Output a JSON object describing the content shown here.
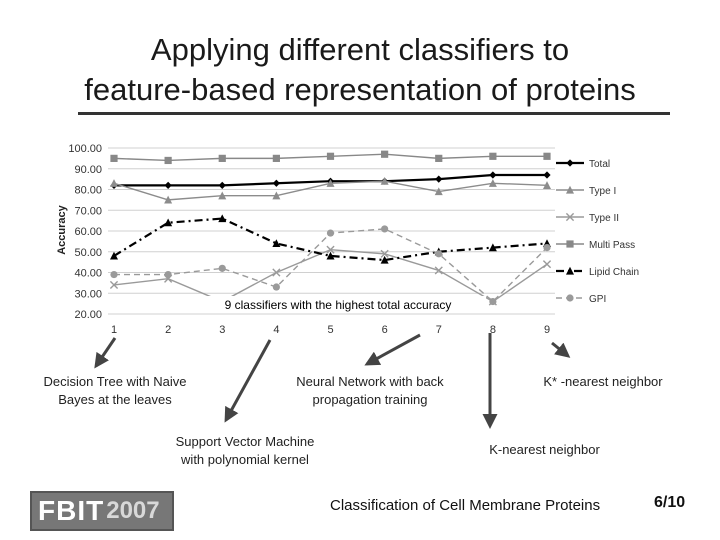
{
  "slide": {
    "title_line1": "Applying different classifiers to",
    "title_line2": "feature-based representation of proteins",
    "footer": "Classification of Cell Membrane Proteins",
    "page": "6/10",
    "logo_text": "FBIT",
    "logo_year": "2007"
  },
  "annotations": {
    "banner": "9 classifiers with the highest total accuracy",
    "decision_tree": [
      "Decision Tree with Naive",
      "Bayes at the leaves"
    ],
    "svm": [
      "Support Vector Machine",
      "with polynomial kernel"
    ],
    "neural_net": [
      "Neural Network with back",
      "propagation training"
    ],
    "knn": "K-nearest neighbor",
    "kstar": "K* -nearest neighbor"
  },
  "chart_data": {
    "type": "line",
    "ylabel": "Accuracy",
    "xlabel": "",
    "x": [
      1,
      2,
      3,
      4,
      5,
      6,
      7,
      8,
      9
    ],
    "ylim": [
      20,
      100
    ],
    "yticks": [
      "20.00",
      "30.00",
      "40.00",
      "50.00",
      "60.00",
      "70.00",
      "80.00",
      "90.00",
      "100.00"
    ],
    "grid": true,
    "legend_position": "right",
    "series": [
      {
        "name": "Total",
        "color": "#000000",
        "marker": "diamond",
        "dash": "solid",
        "values": [
          82,
          82,
          82,
          83,
          84,
          84,
          85,
          87,
          87
        ]
      },
      {
        "name": "Type I",
        "color": "#8c8c8c",
        "marker": "triangle",
        "dash": "solid",
        "values": [
          83,
          75,
          77,
          77,
          83,
          84,
          79,
          83,
          82
        ]
      },
      {
        "name": "Type II",
        "color": "#9a9a9a",
        "marker": "x",
        "dash": "solid",
        "values": [
          34,
          37,
          26,
          40,
          51,
          49,
          41,
          26,
          44
        ]
      },
      {
        "name": "Multi Pass",
        "color": "#888888",
        "marker": "square",
        "dash": "solid",
        "values": [
          95,
          94,
          95,
          95,
          96,
          97,
          95,
          96,
          96
        ]
      },
      {
        "name": "Lipid Chain",
        "color": "#000000",
        "marker": "triangle",
        "dash": "dashdot",
        "values": [
          48,
          64,
          66,
          54,
          48,
          46,
          50,
          52,
          54
        ]
      },
      {
        "name": "GPI",
        "color": "#9a9a9a",
        "marker": "circle",
        "dash": "dashed",
        "values": [
          39,
          39,
          42,
          33,
          59,
          61,
          49,
          26,
          52
        ]
      }
    ]
  }
}
